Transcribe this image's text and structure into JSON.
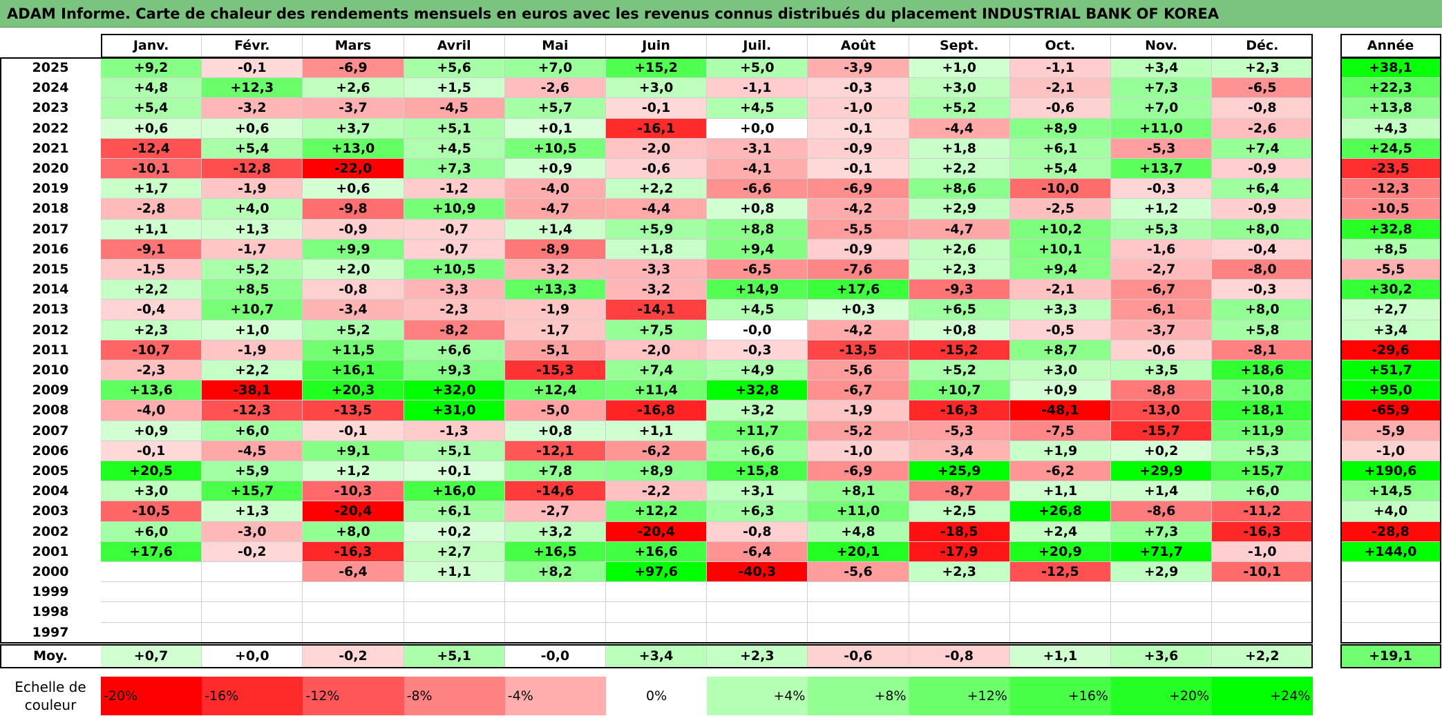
{
  "title": "ADAM Informe. Carte de chaleur des rendements mensuels en euros avec les revenus connus distribués du placement INDUSTRIAL BANK OF KOREA",
  "chart_data": {
    "type": "heatmap",
    "title": "ADAM Informe. Carte de chaleur des rendements mensuels en euros avec les revenus connus distribués du placement INDUSTRIAL BANK OF KOREA",
    "columns": [
      "Janv.",
      "Févr.",
      "Mars",
      "Avril",
      "Mai",
      "Juin",
      "Juil.",
      "Août",
      "Sept.",
      "Oct.",
      "Nov.",
      "Déc."
    ],
    "year_header": "Année",
    "rows": [
      {
        "year": "2025",
        "values": [
          "+9,2",
          "-0,1",
          "-6,9",
          "+5,6",
          "+7,0",
          "+15,2",
          "+5,0",
          "-3,9",
          "+1,0",
          "-1,1",
          "+3,4",
          "+2,3"
        ],
        "annual": "+38,1"
      },
      {
        "year": "2024",
        "values": [
          "+4,8",
          "+12,3",
          "+2,6",
          "+1,5",
          "-2,6",
          "+3,0",
          "-1,1",
          "-0,3",
          "+3,0",
          "-2,1",
          "+7,3",
          "-6,5"
        ],
        "annual": "+22,3"
      },
      {
        "year": "2023",
        "values": [
          "+5,4",
          "-3,2",
          "-3,7",
          "-4,5",
          "+5,7",
          "-0,1",
          "+4,5",
          "-1,0",
          "+5,2",
          "-0,6",
          "+7,0",
          "-0,8"
        ],
        "annual": "+13,8"
      },
      {
        "year": "2022",
        "values": [
          "+0,6",
          "+0,6",
          "+3,7",
          "+5,1",
          "+0,1",
          "-16,1",
          "+0,0",
          "-0,1",
          "-4,4",
          "+8,9",
          "+11,0",
          "-2,6"
        ],
        "annual": "+4,3"
      },
      {
        "year": "2021",
        "values": [
          "-12,4",
          "+5,4",
          "+13,0",
          "+4,5",
          "+10,5",
          "-2,0",
          "-3,1",
          "-0,9",
          "+1,8",
          "+6,1",
          "-5,3",
          "+7,4"
        ],
        "annual": "+24,5"
      },
      {
        "year": "2020",
        "values": [
          "-10,1",
          "-12,8",
          "-22,0",
          "+7,3",
          "+0,9",
          "-0,6",
          "-4,1",
          "-0,1",
          "+2,2",
          "+5,4",
          "+13,7",
          "-0,9"
        ],
        "annual": "-23,5"
      },
      {
        "year": "2019",
        "values": [
          "+1,7",
          "-1,9",
          "+0,6",
          "-1,2",
          "-4,0",
          "+2,2",
          "-6,6",
          "-6,9",
          "+8,6",
          "-10,0",
          "-0,3",
          "+6,4"
        ],
        "annual": "-12,3"
      },
      {
        "year": "2018",
        "values": [
          "-2,8",
          "+4,0",
          "-9,8",
          "+10,9",
          "-4,7",
          "-4,4",
          "+0,8",
          "-4,2",
          "+2,9",
          "-2,5",
          "+1,2",
          "-0,9"
        ],
        "annual": "-10,5"
      },
      {
        "year": "2017",
        "values": [
          "+1,1",
          "+1,3",
          "-0,9",
          "-0,7",
          "+1,4",
          "+5,9",
          "+8,8",
          "-5,5",
          "-4,7",
          "+10,2",
          "+5,3",
          "+8,0"
        ],
        "annual": "+32,8"
      },
      {
        "year": "2016",
        "values": [
          "-9,1",
          "-1,7",
          "+9,9",
          "-0,7",
          "-8,9",
          "+1,8",
          "+9,4",
          "-0,9",
          "+2,6",
          "+10,1",
          "-1,6",
          "-0,4"
        ],
        "annual": "+8,5"
      },
      {
        "year": "2015",
        "values": [
          "-1,5",
          "+5,2",
          "+2,0",
          "+10,5",
          "-3,2",
          "-3,3",
          "-6,5",
          "-7,6",
          "+2,3",
          "+9,4",
          "-2,7",
          "-8,0"
        ],
        "annual": "-5,5"
      },
      {
        "year": "2014",
        "values": [
          "+2,2",
          "+8,5",
          "-0,8",
          "-3,3",
          "+13,3",
          "-3,2",
          "+14,9",
          "+17,6",
          "-9,3",
          "-2,1",
          "-6,7",
          "-0,3"
        ],
        "annual": "+30,2"
      },
      {
        "year": "2013",
        "values": [
          "-0,4",
          "+10,7",
          "-3,4",
          "-2,3",
          "-1,9",
          "-14,1",
          "+4,5",
          "+0,3",
          "+6,5",
          "+3,3",
          "-6,1",
          "+8,0"
        ],
        "annual": "+2,7"
      },
      {
        "year": "2012",
        "values": [
          "+2,3",
          "+1,0",
          "+5,2",
          "-8,2",
          "-1,7",
          "+7,5",
          "-0,0",
          "-4,2",
          "+0,8",
          "-0,5",
          "-3,7",
          "+5,8"
        ],
        "annual": "+3,4"
      },
      {
        "year": "2011",
        "values": [
          "-10,7",
          "-1,9",
          "+11,5",
          "+6,6",
          "-5,1",
          "-2,0",
          "-0,3",
          "-13,5",
          "-15,2",
          "+8,7",
          "-0,6",
          "-8,1"
        ],
        "annual": "-29,6"
      },
      {
        "year": "2010",
        "values": [
          "-2,3",
          "+2,2",
          "+16,1",
          "+9,3",
          "-15,3",
          "+7,4",
          "+4,9",
          "-5,6",
          "+5,2",
          "+3,0",
          "+3,5",
          "+18,6"
        ],
        "annual": "+51,7"
      },
      {
        "year": "2009",
        "values": [
          "+13,6",
          "-38,1",
          "+20,3",
          "+32,0",
          "+12,4",
          "+11,4",
          "+32,8",
          "-6,7",
          "+10,7",
          "+0,9",
          "-8,8",
          "+10,8"
        ],
        "annual": "+95,0"
      },
      {
        "year": "2008",
        "values": [
          "-4,0",
          "-12,3",
          "-13,5",
          "+31,0",
          "-5,0",
          "-16,8",
          "+3,2",
          "-1,9",
          "-16,3",
          "-48,1",
          "-13,0",
          "+18,1"
        ],
        "annual": "-65,9"
      },
      {
        "year": "2007",
        "values": [
          "+0,9",
          "+6,0",
          "-0,1",
          "-1,3",
          "+0,8",
          "+1,1",
          "+11,7",
          "-5,2",
          "-5,3",
          "-7,5",
          "-15,7",
          "+11,9"
        ],
        "annual": "-5,9"
      },
      {
        "year": "2006",
        "values": [
          "-0,1",
          "-4,5",
          "+9,1",
          "+5,1",
          "-12,1",
          "-6,2",
          "+6,6",
          "-1,0",
          "-3,4",
          "+1,9",
          "+0,2",
          "+5,3"
        ],
        "annual": "-1,0"
      },
      {
        "year": "2005",
        "values": [
          "+20,5",
          "+5,9",
          "+1,2",
          "+0,1",
          "+7,8",
          "+8,9",
          "+15,8",
          "-6,9",
          "+25,9",
          "-6,2",
          "+29,9",
          "+15,7"
        ],
        "annual": "+190,6"
      },
      {
        "year": "2004",
        "values": [
          "+3,0",
          "+15,7",
          "-10,3",
          "+16,0",
          "-14,6",
          "-2,2",
          "+3,1",
          "+8,1",
          "-8,7",
          "+1,1",
          "+1,4",
          "+6,0"
        ],
        "annual": "+14,5"
      },
      {
        "year": "2003",
        "values": [
          "-10,5",
          "+1,3",
          "-20,4",
          "+6,1",
          "-2,7",
          "+12,2",
          "+6,3",
          "+11,0",
          "+2,5",
          "+26,8",
          "-8,6",
          "-11,2"
        ],
        "annual": "+4,0"
      },
      {
        "year": "2002",
        "values": [
          "+6,0",
          "-3,0",
          "+8,0",
          "+0,2",
          "+3,2",
          "-20,4",
          "-0,8",
          "+4,8",
          "-18,5",
          "+2,4",
          "+7,3",
          "-16,3"
        ],
        "annual": "-28,8"
      },
      {
        "year": "2001",
        "values": [
          "+17,6",
          "-0,2",
          "-16,3",
          "+2,7",
          "+16,5",
          "+16,6",
          "-6,4",
          "+20,1",
          "-17,9",
          "+20,9",
          "+71,7",
          "-1,0"
        ],
        "annual": "+144,0"
      },
      {
        "year": "2000",
        "values": [
          "",
          "",
          "-6,4",
          "+1,1",
          "+8,2",
          "+97,6",
          "-40,3",
          "-5,6",
          "+2,3",
          "-12,5",
          "+2,9",
          "-10,1"
        ],
        "annual": ""
      },
      {
        "year": "1999",
        "values": [
          "",
          "",
          "",
          "",
          "",
          "",
          "",
          "",
          "",
          "",
          "",
          ""
        ],
        "annual": ""
      },
      {
        "year": "1998",
        "values": [
          "",
          "",
          "",
          "",
          "",
          "",
          "",
          "",
          "",
          "",
          "",
          ""
        ],
        "annual": ""
      },
      {
        "year": "1997",
        "values": [
          "",
          "",
          "",
          "",
          "",
          "",
          "",
          "",
          "",
          "",
          "",
          ""
        ],
        "annual": ""
      }
    ],
    "average": {
      "label": "Moy.",
      "values": [
        "+0,7",
        "+0,0",
        "-0,2",
        "+5,1",
        "-0,0",
        "+3,4",
        "+2,3",
        "-0,6",
        "-0,8",
        "+1,1",
        "+3,6",
        "+2,2"
      ],
      "annual": "+19,1"
    },
    "scale": {
      "label": "Echelle de couleur",
      "items": [
        "-20%",
        "-16%",
        "-12%",
        "-8%",
        "-4%",
        "0%",
        "+4%",
        "+8%",
        "+12%",
        "+16%",
        "+20%",
        "+24%"
      ]
    },
    "colors": {
      "neg_strong": "#ff0000",
      "neutral": "#ffffff",
      "pos_strong": "#00ff00",
      "title_bg": "#7bc47f"
    }
  }
}
